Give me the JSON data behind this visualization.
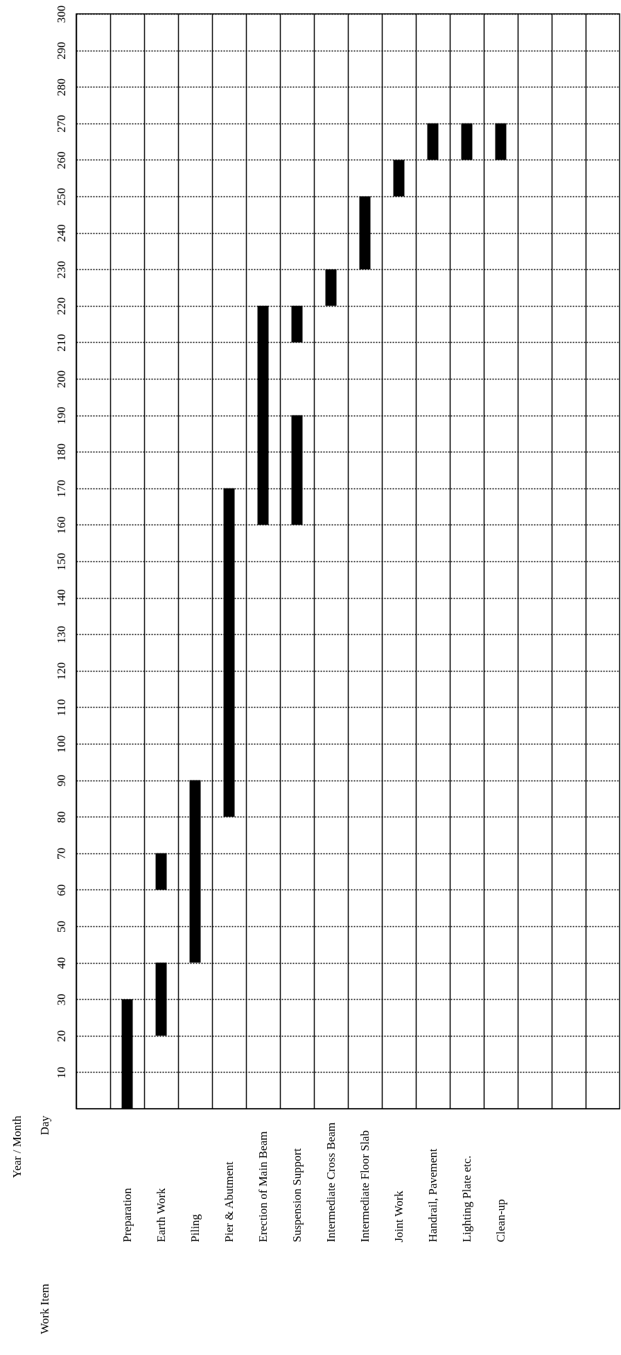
{
  "chart_data": {
    "type": "bar",
    "categories": [
      null,
      "Preparation",
      "Earth Work",
      "Piling",
      "Pier & Abutment",
      "Erection of Main Beam",
      "Suspension Support",
      "Intermediate Cross Beam",
      "Intermediate Floor Slab",
      "Joint Work",
      "Handrail, Pavement",
      "Lighting Plate etc.",
      "Clean-up",
      null,
      null,
      null
    ],
    "series": [
      {
        "color": "#000000",
        "base": [
          null,
          0,
          20,
          40,
          80,
          160,
          160,
          220,
          230,
          250,
          260,
          260,
          260,
          null,
          null,
          null
        ],
        "values": [
          null,
          30,
          20,
          50,
          90,
          60,
          30,
          10,
          20,
          10,
          10,
          10,
          10,
          null,
          null,
          null
        ]
      },
      {
        "color": "#000000",
        "base": [
          null,
          null,
          60,
          null,
          null,
          null,
          210,
          null,
          null,
          null,
          null,
          null,
          null,
          null,
          null,
          null
        ],
        "values": [
          null,
          null,
          10,
          null,
          null,
          null,
          10,
          null,
          null,
          null,
          null,
          null,
          null,
          null,
          null,
          null
        ]
      }
    ],
    "ylim": [
      0,
      300
    ],
    "yticks": [
      10,
      20,
      30,
      40,
      50,
      60,
      70,
      80,
      90,
      100,
      110,
      120,
      130,
      140,
      150,
      160,
      170,
      180,
      190,
      200,
      210,
      220,
      230,
      240,
      250,
      260,
      270,
      280,
      290,
      300
    ],
    "grid": true,
    "annotations": [
      "Year / Month",
      "Day",
      "Work Item"
    ]
  }
}
